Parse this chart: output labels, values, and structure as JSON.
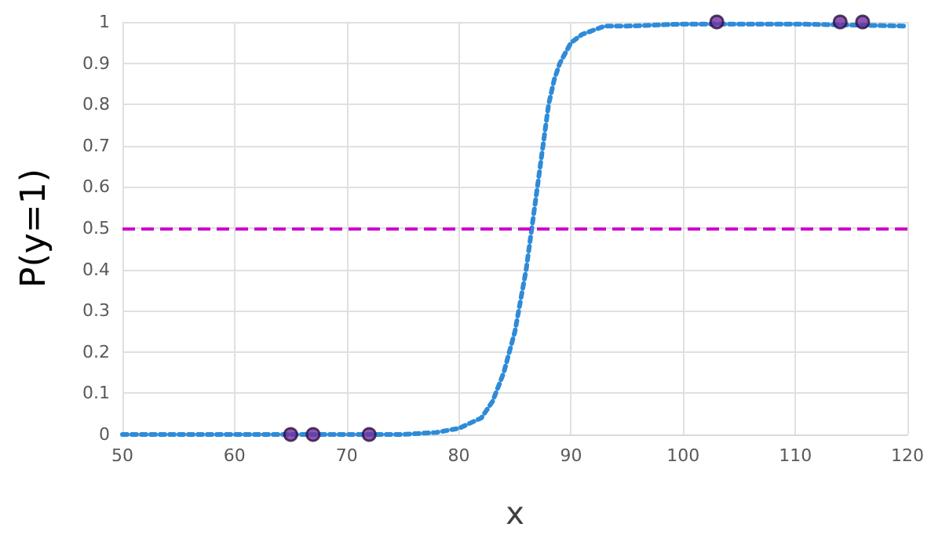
{
  "chart_data": {
    "type": "line",
    "xlabel": "x",
    "ylabel": "P(y=1)",
    "xlim": [
      50,
      120
    ],
    "xticks": [
      50,
      60,
      70,
      80,
      90,
      100,
      110,
      120
    ],
    "ylim": [
      0,
      1
    ],
    "yticks": [
      0,
      0.1,
      0.2,
      0.3,
      0.4,
      0.5,
      0.6,
      0.7,
      0.8,
      0.9,
      1
    ],
    "grid": true,
    "series": [
      {
        "color": "#2e8bd8",
        "line_style": "dotted",
        "marker": "none",
        "x": [
          50,
          60,
          70,
          75,
          78,
          80,
          82,
          83,
          84,
          85,
          86,
          86.5,
          87,
          87.5,
          88,
          88.5,
          89,
          90,
          91,
          92,
          93,
          95,
          100,
          110,
          120
        ],
        "values": [
          0,
          0,
          0,
          0,
          0.005,
          0.015,
          0.04,
          0.08,
          0.15,
          0.25,
          0.4,
          0.5,
          0.6,
          0.7,
          0.8,
          0.86,
          0.9,
          0.95,
          0.97,
          0.98,
          0.99,
          0.99,
          0.995,
          0.995,
          0.99
        ]
      },
      {
        "type": "scatter",
        "color": "#7030a0",
        "marker": "circle",
        "x": [
          65,
          67,
          72,
          103,
          114,
          116
        ],
        "values": [
          0,
          0,
          0,
          1,
          1,
          1
        ]
      }
    ],
    "ref_lines": [
      {
        "axis": "y",
        "value": 0.5,
        "color": "#cc00cc",
        "line_style": "dashed"
      }
    ]
  }
}
